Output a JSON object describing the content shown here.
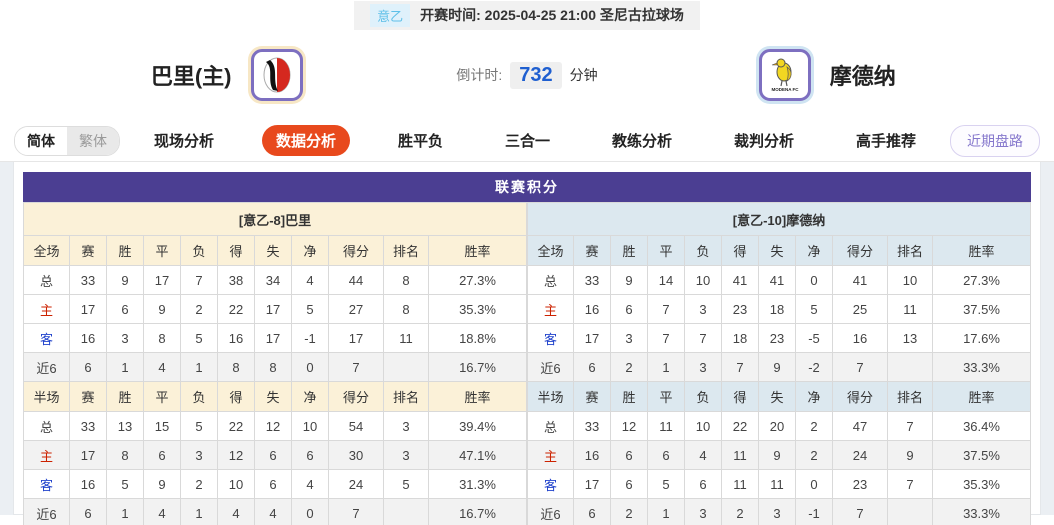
{
  "colors": {
    "accent_purple": "#4B3E92",
    "active_tab_orange": "#E8491D",
    "home_panel_cream": "#FBF1D8",
    "away_panel_blue": "#DCE8EF",
    "home_row_red": "#CC2200",
    "away_row_blue": "#2244CC",
    "countdown_blue": "#1F5FD0",
    "league_badge_blue": "#5FC0E8"
  },
  "topbar": {
    "league_badge": "意乙",
    "match_info": "开赛时间: 2025-04-25 21:00  圣尼古拉球场"
  },
  "team_header": {
    "home_name": "巴里(主)",
    "away_name": "摩德纳",
    "home_logo": "bari-crest",
    "away_logo": "modena-crest",
    "countdown_label": "倒计时:",
    "countdown_value": "732",
    "countdown_unit": "分钟"
  },
  "lang_toggle": {
    "simplified": "简体",
    "traditional": "繁体"
  },
  "tabs": [
    {
      "label": "现场分析",
      "active": false
    },
    {
      "label": "数据分析",
      "active": true
    },
    {
      "label": "胜平负",
      "active": false
    },
    {
      "label": "三合一",
      "active": false
    },
    {
      "label": "教练分析",
      "active": false
    },
    {
      "label": "裁判分析",
      "active": false
    },
    {
      "label": "高手推荐",
      "active": false
    }
  ],
  "recent_button_label": "近期盘路",
  "league_table": {
    "title": "联赛积分",
    "columns_full": [
      "全场",
      "赛",
      "胜",
      "平",
      "负",
      "得",
      "失",
      "净",
      "得分",
      "排名",
      "胜率"
    ],
    "columns_half": [
      "半场",
      "赛",
      "胜",
      "平",
      "负",
      "得",
      "失",
      "净",
      "得分",
      "排名",
      "胜率"
    ],
    "home": {
      "subtitle": "[意乙-8]巴里",
      "full": [
        {
          "label": "总",
          "values": [
            "33",
            "9",
            "17",
            "7",
            "38",
            "34",
            "4",
            "44",
            "8",
            "27.3%"
          ]
        },
        {
          "label": "主",
          "values": [
            "17",
            "6",
            "9",
            "2",
            "22",
            "17",
            "5",
            "27",
            "8",
            "35.3%"
          ]
        },
        {
          "label": "客",
          "values": [
            "16",
            "3",
            "8",
            "5",
            "16",
            "17",
            "-1",
            "17",
            "11",
            "18.8%"
          ]
        },
        {
          "label": "近6",
          "values": [
            "6",
            "1",
            "4",
            "1",
            "8",
            "8",
            "0",
            "7",
            "",
            "16.7%"
          ]
        }
      ],
      "half": [
        {
          "label": "总",
          "values": [
            "33",
            "13",
            "15",
            "5",
            "22",
            "12",
            "10",
            "54",
            "3",
            "39.4%"
          ]
        },
        {
          "label": "主",
          "values": [
            "17",
            "8",
            "6",
            "3",
            "12",
            "6",
            "6",
            "30",
            "3",
            "47.1%"
          ]
        },
        {
          "label": "客",
          "values": [
            "16",
            "5",
            "9",
            "2",
            "10",
            "6",
            "4",
            "24",
            "5",
            "31.3%"
          ]
        },
        {
          "label": "近6",
          "values": [
            "6",
            "1",
            "4",
            "1",
            "4",
            "4",
            "0",
            "7",
            "",
            "16.7%"
          ]
        }
      ]
    },
    "away": {
      "subtitle": "[意乙-10]摩德纳",
      "full": [
        {
          "label": "总",
          "values": [
            "33",
            "9",
            "14",
            "10",
            "41",
            "41",
            "0",
            "41",
            "10",
            "27.3%"
          ]
        },
        {
          "label": "主",
          "values": [
            "16",
            "6",
            "7",
            "3",
            "23",
            "18",
            "5",
            "25",
            "11",
            "37.5%"
          ]
        },
        {
          "label": "客",
          "values": [
            "17",
            "3",
            "7",
            "7",
            "18",
            "23",
            "-5",
            "16",
            "13",
            "17.6%"
          ]
        },
        {
          "label": "近6",
          "values": [
            "6",
            "2",
            "1",
            "3",
            "7",
            "9",
            "-2",
            "7",
            "",
            "33.3%"
          ]
        }
      ],
      "half": [
        {
          "label": "总",
          "values": [
            "33",
            "12",
            "11",
            "10",
            "22",
            "20",
            "2",
            "47",
            "7",
            "36.4%"
          ]
        },
        {
          "label": "主",
          "values": [
            "16",
            "6",
            "6",
            "4",
            "11",
            "9",
            "2",
            "24",
            "9",
            "37.5%"
          ]
        },
        {
          "label": "客",
          "values": [
            "17",
            "6",
            "5",
            "6",
            "11",
            "11",
            "0",
            "23",
            "7",
            "35.3%"
          ]
        },
        {
          "label": "近6",
          "values": [
            "6",
            "2",
            "1",
            "3",
            "2",
            "3",
            "-1",
            "7",
            "",
            "33.3%"
          ]
        }
      ]
    }
  }
}
